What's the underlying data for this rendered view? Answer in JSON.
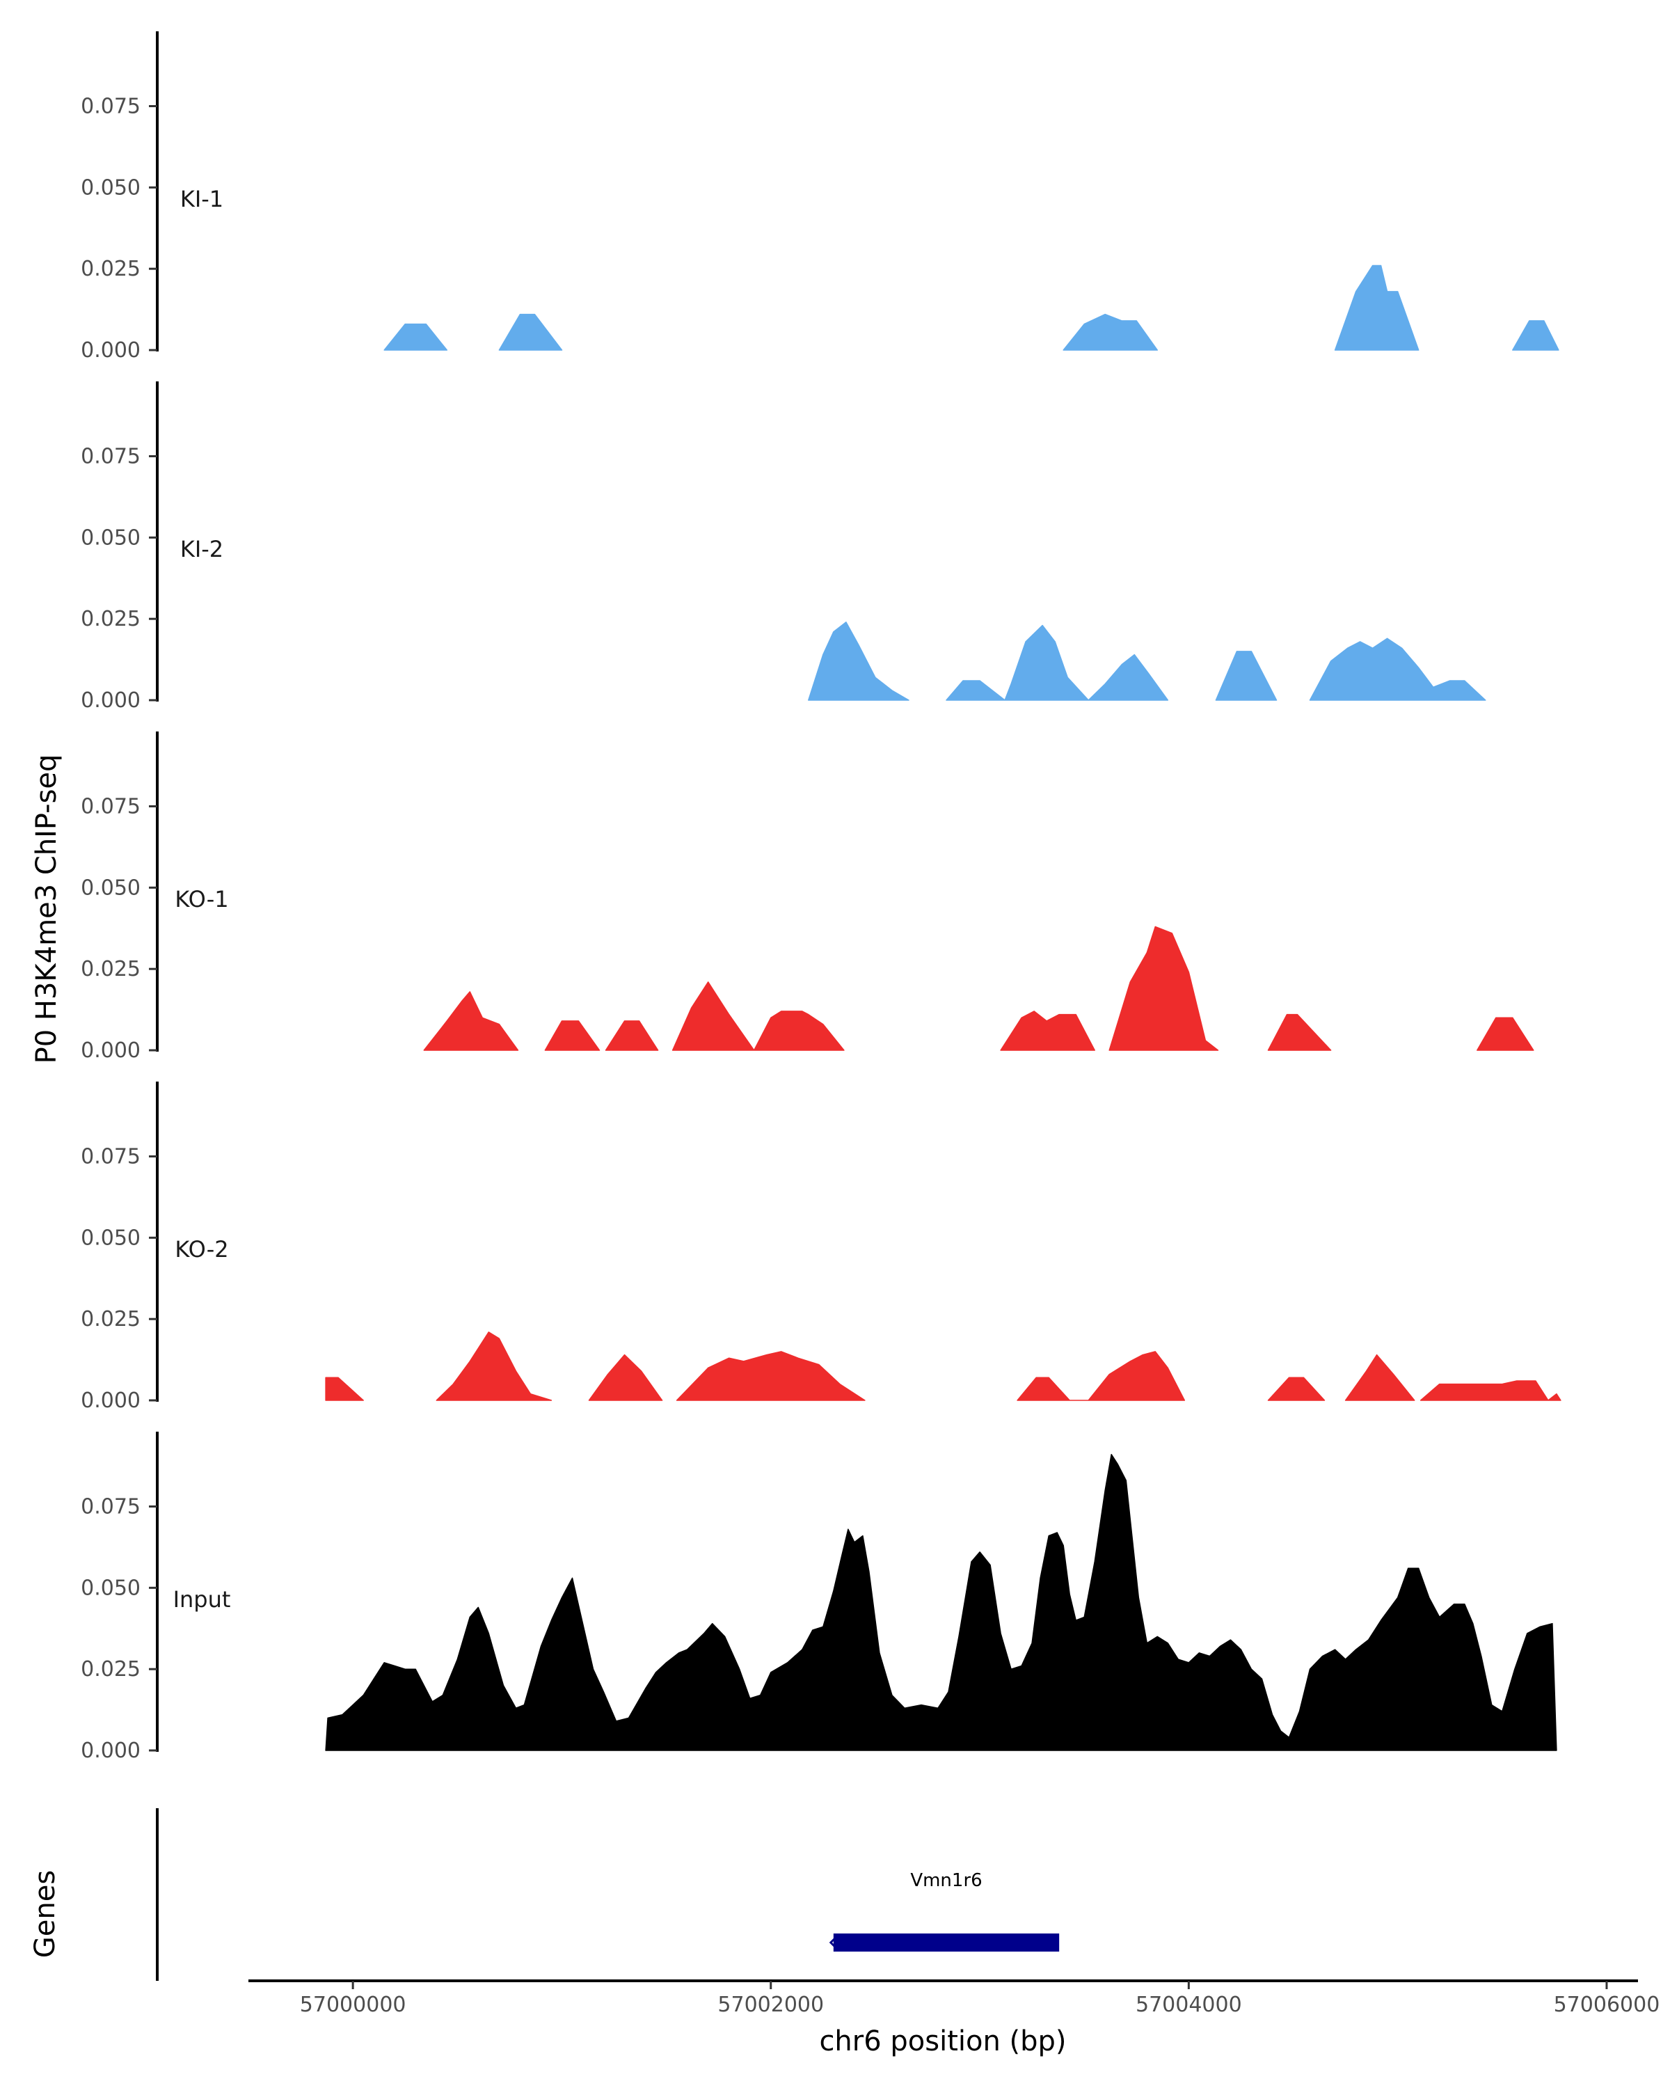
{
  "chart_data": {
    "type": "area",
    "x_axis": {
      "label": "chr6 position (bp)",
      "range": [
        56999500,
        57006150
      ],
      "ticks": [
        57000000,
        57002000,
        57004000,
        57006000
      ],
      "tick_labels": [
        "57000000",
        "57002000",
        "57004000",
        "57006000"
      ]
    },
    "y_axis": {
      "label": "P0 H3K4me3 ChIP-seq",
      "range": [
        0,
        0.098
      ],
      "ticks": [
        0,
        0.025,
        0.05,
        0.075
      ],
      "tick_labels": [
        "0.000",
        "0.025",
        "0.050",
        "0.075"
      ]
    },
    "grid": false,
    "tracks": [
      {
        "name": "KI-1",
        "color": "#62acec",
        "points": [
          [
            57000150,
            0
          ],
          [
            57000250,
            0.008
          ],
          [
            57000350,
            0.008
          ],
          [
            57000450,
            0
          ],
          null,
          [
            57000700,
            0
          ],
          [
            57000800,
            0.011
          ],
          [
            57000870,
            0.011
          ],
          [
            57001000,
            0
          ],
          null,
          [
            57003400,
            0
          ],
          [
            57003500,
            0.008
          ],
          [
            57003600,
            0.011
          ],
          [
            57003680,
            0.009
          ],
          [
            57003750,
            0.009
          ],
          [
            57003850,
            0
          ],
          null,
          [
            57004700,
            0
          ],
          [
            57004800,
            0.018
          ],
          [
            57004880,
            0.026
          ],
          [
            57004920,
            0.026
          ],
          [
            57004950,
            0.018
          ],
          [
            57005000,
            0.018
          ],
          [
            57005100,
            0
          ],
          null,
          [
            57005550,
            0
          ],
          [
            57005630,
            0.009
          ],
          [
            57005700,
            0.009
          ],
          [
            57005770,
            0
          ]
        ]
      },
      {
        "name": "KI-2",
        "color": "#62acec",
        "points": [
          [
            57002180,
            0
          ],
          [
            57002250,
            0.014
          ],
          [
            57002300,
            0.021
          ],
          [
            57002360,
            0.024
          ],
          [
            57002420,
            0.017
          ],
          [
            57002500,
            0.007
          ],
          [
            57002580,
            0.003
          ],
          [
            57002660,
            0
          ],
          null,
          [
            57002840,
            0
          ],
          [
            57002920,
            0.006
          ],
          [
            57003000,
            0.006
          ],
          [
            57003120,
            0
          ],
          [
            57003150,
            0.005
          ],
          [
            57003220,
            0.018
          ],
          [
            57003300,
            0.023
          ],
          [
            57003360,
            0.018
          ],
          [
            57003420,
            0.007
          ],
          [
            57003520,
            0
          ],
          [
            57003600,
            0.005
          ],
          [
            57003680,
            0.011
          ],
          [
            57003740,
            0.014
          ],
          [
            57003810,
            0.008
          ],
          [
            57003900,
            0
          ],
          null,
          [
            57004130,
            0
          ],
          [
            57004230,
            0.015
          ],
          [
            57004300,
            0.015
          ],
          [
            57004420,
            0
          ],
          null,
          [
            57004580,
            0
          ],
          [
            57004680,
            0.012
          ],
          [
            57004760,
            0.016
          ],
          [
            57004820,
            0.018
          ],
          [
            57004880,
            0.016
          ],
          [
            57004950,
            0.019
          ],
          [
            57005020,
            0.016
          ],
          [
            57005100,
            0.01
          ],
          [
            57005170,
            0.004
          ],
          [
            57005250,
            0.006
          ],
          [
            57005320,
            0.006
          ],
          [
            57005420,
            0
          ]
        ]
      },
      {
        "name": "KO-1",
        "color": "#ee2c2c",
        "points": [
          [
            57000340,
            0
          ],
          [
            57000450,
            0.009
          ],
          [
            57000520,
            0.015
          ],
          [
            57000560,
            0.018
          ],
          [
            57000620,
            0.01
          ],
          [
            57000700,
            0.008
          ],
          [
            57000790,
            0
          ],
          null,
          [
            57000920,
            0
          ],
          [
            57001000,
            0.009
          ],
          [
            57001080,
            0.009
          ],
          [
            57001180,
            0
          ],
          null,
          [
            57001210,
            0
          ],
          [
            57001300,
            0.009
          ],
          [
            57001370,
            0.009
          ],
          [
            57001460,
            0
          ],
          null,
          [
            57001530,
            0
          ],
          [
            57001620,
            0.013
          ],
          [
            57001700,
            0.021
          ],
          [
            57001800,
            0.011
          ],
          [
            57001920,
            0
          ],
          [
            57002000,
            0.01
          ],
          [
            57002050,
            0.012
          ],
          [
            57002150,
            0.012
          ],
          [
            57002180,
            0.011
          ],
          [
            57002250,
            0.008
          ],
          [
            57002350,
            0
          ],
          null,
          [
            57003100,
            0
          ],
          [
            57003200,
            0.01
          ],
          [
            57003260,
            0.012
          ],
          [
            57003320,
            0.009
          ],
          [
            57003380,
            0.011
          ],
          [
            57003460,
            0.011
          ],
          [
            57003550,
            0
          ],
          null,
          [
            57003620,
            0
          ],
          [
            57003720,
            0.021
          ],
          [
            57003800,
            0.03
          ],
          [
            57003840,
            0.038
          ],
          [
            57003920,
            0.036
          ],
          [
            57004000,
            0.024
          ],
          [
            57004080,
            0.003
          ],
          [
            57004140,
            0
          ],
          null,
          [
            57004380,
            0
          ],
          [
            57004470,
            0.011
          ],
          [
            57004520,
            0.011
          ],
          [
            57004680,
            0
          ],
          null,
          [
            57005380,
            0
          ],
          [
            57005470,
            0.01
          ],
          [
            57005550,
            0.01
          ],
          [
            57005650,
            0
          ]
        ]
      },
      {
        "name": "KO-2",
        "color": "#ee2c2c",
        "points": [
          [
            56999870,
            0
          ],
          [
            56999870,
            0.007
          ],
          [
            56999930,
            0.007
          ],
          [
            57000050,
            0
          ],
          null,
          [
            57000400,
            0
          ],
          [
            57000480,
            0.005
          ],
          [
            57000560,
            0.012
          ],
          [
            57000650,
            0.021
          ],
          [
            57000700,
            0.019
          ],
          [
            57000780,
            0.009
          ],
          [
            57000850,
            0.002
          ],
          [
            57000950,
            0
          ],
          null,
          [
            57001130,
            0
          ],
          [
            57001220,
            0.008
          ],
          [
            57001300,
            0.014
          ],
          [
            57001380,
            0.009
          ],
          [
            57001480,
            0
          ],
          null,
          [
            57001550,
            0
          ],
          [
            57001700,
            0.01
          ],
          [
            57001800,
            0.013
          ],
          [
            57001870,
            0.012
          ],
          [
            57001980,
            0.014
          ],
          [
            57002050,
            0.015
          ],
          [
            57002130,
            0.013
          ],
          [
            57002230,
            0.011
          ],
          [
            57002330,
            0.005
          ],
          [
            57002450,
            0
          ],
          null,
          [
            57003180,
            0
          ],
          [
            57003270,
            0.007
          ],
          [
            57003330,
            0.007
          ],
          [
            57003430,
            0
          ],
          [
            57003520,
            0
          ],
          [
            57003620,
            0.008
          ],
          [
            57003720,
            0.012
          ],
          [
            57003780,
            0.014
          ],
          [
            57003840,
            0.015
          ],
          [
            57003900,
            0.01
          ],
          [
            57003980,
            0
          ],
          null,
          [
            57004380,
            0
          ],
          [
            57004480,
            0.007
          ],
          [
            57004550,
            0.007
          ],
          [
            57004650,
            0
          ],
          null,
          [
            57004750,
            0
          ],
          [
            57004850,
            0.009
          ],
          [
            57004900,
            0.014
          ],
          [
            57004980,
            0.008
          ],
          [
            57005080,
            0
          ],
          null,
          [
            57005110,
            0
          ],
          [
            57005200,
            0.005
          ],
          [
            57005300,
            0.005
          ],
          [
            57005500,
            0.005
          ],
          [
            57005570,
            0.006
          ],
          [
            57005660,
            0.006
          ],
          [
            57005720,
            0
          ],
          [
            57005760,
            0.002
          ],
          [
            57005780,
            0
          ]
        ]
      },
      {
        "name": "Input",
        "color": "#000000",
        "points": [
          [
            56999870,
            0
          ],
          [
            56999880,
            0.01
          ],
          [
            56999950,
            0.011
          ],
          [
            57000050,
            0.017
          ],
          [
            57000100,
            0.022
          ],
          [
            57000150,
            0.027
          ],
          [
            57000200,
            0.026
          ],
          [
            57000250,
            0.025
          ],
          [
            57000300,
            0.025
          ],
          [
            57000380,
            0.015
          ],
          [
            57000430,
            0.017
          ],
          [
            57000500,
            0.028
          ],
          [
            57000560,
            0.041
          ],
          [
            57000600,
            0.044
          ],
          [
            57000650,
            0.036
          ],
          [
            57000720,
            0.02
          ],
          [
            57000780,
            0.013
          ],
          [
            57000820,
            0.014
          ],
          [
            57000900,
            0.032
          ],
          [
            57000950,
            0.04
          ],
          [
            57001000,
            0.047
          ],
          [
            57001050,
            0.053
          ],
          [
            57001100,
            0.039
          ],
          [
            57001150,
            0.025
          ],
          [
            57001200,
            0.018
          ],
          [
            57001260,
            0.009
          ],
          [
            57001320,
            0.01
          ],
          [
            57001400,
            0.019
          ],
          [
            57001450,
            0.024
          ],
          [
            57001500,
            0.027
          ],
          [
            57001560,
            0.03
          ],
          [
            57001600,
            0.031
          ],
          [
            57001680,
            0.036
          ],
          [
            57001720,
            0.039
          ],
          [
            57001780,
            0.035
          ],
          [
            57001850,
            0.025
          ],
          [
            57001900,
            0.016
          ],
          [
            57001950,
            0.017
          ],
          [
            57002000,
            0.024
          ],
          [
            57002080,
            0.027
          ],
          [
            57002150,
            0.031
          ],
          [
            57002200,
            0.037
          ],
          [
            57002250,
            0.038
          ],
          [
            57002300,
            0.049
          ],
          [
            57002340,
            0.06
          ],
          [
            57002370,
            0.068
          ],
          [
            57002400,
            0.064
          ],
          [
            57002440,
            0.066
          ],
          [
            57002470,
            0.055
          ],
          [
            57002520,
            0.03
          ],
          [
            57002580,
            0.017
          ],
          [
            57002640,
            0.013
          ],
          [
            57002720,
            0.014
          ],
          [
            57002800,
            0.013
          ],
          [
            57002850,
            0.018
          ],
          [
            57002900,
            0.035
          ],
          [
            57002960,
            0.058
          ],
          [
            57003000,
            0.061
          ],
          [
            57003050,
            0.057
          ],
          [
            57003100,
            0.036
          ],
          [
            57003150,
            0.025
          ],
          [
            57003200,
            0.026
          ],
          [
            57003250,
            0.033
          ],
          [
            57003290,
            0.053
          ],
          [
            57003330,
            0.066
          ],
          [
            57003370,
            0.067
          ],
          [
            57003400,
            0.063
          ],
          [
            57003430,
            0.048
          ],
          [
            57003460,
            0.04
          ],
          [
            57003500,
            0.041
          ],
          [
            57003550,
            0.058
          ],
          [
            57003600,
            0.08
          ],
          [
            57003630,
            0.091
          ],
          [
            57003660,
            0.088
          ],
          [
            57003700,
            0.083
          ],
          [
            57003760,
            0.047
          ],
          [
            57003800,
            0.033
          ],
          [
            57003850,
            0.035
          ],
          [
            57003900,
            0.033
          ],
          [
            57003950,
            0.028
          ],
          [
            57004000,
            0.027
          ],
          [
            57004050,
            0.03
          ],
          [
            57004100,
            0.029
          ],
          [
            57004150,
            0.032
          ],
          [
            57004200,
            0.034
          ],
          [
            57004250,
            0.031
          ],
          [
            57004300,
            0.025
          ],
          [
            57004350,
            0.022
          ],
          [
            57004400,
            0.011
          ],
          [
            57004440,
            0.006
          ],
          [
            57004480,
            0.004
          ],
          [
            57004530,
            0.012
          ],
          [
            57004580,
            0.025
          ],
          [
            57004640,
            0.029
          ],
          [
            57004700,
            0.031
          ],
          [
            57004750,
            0.028
          ],
          [
            57004800,
            0.031
          ],
          [
            57004860,
            0.034
          ],
          [
            57004920,
            0.04
          ],
          [
            57005000,
            0.047
          ],
          [
            57005050,
            0.056
          ],
          [
            57005100,
            0.056
          ],
          [
            57005150,
            0.047
          ],
          [
            57005200,
            0.041
          ],
          [
            57005270,
            0.045
          ],
          [
            57005320,
            0.045
          ],
          [
            57005360,
            0.039
          ],
          [
            57005400,
            0.029
          ],
          [
            57005450,
            0.014
          ],
          [
            57005500,
            0.012
          ],
          [
            57005560,
            0.025
          ],
          [
            57005620,
            0.036
          ],
          [
            57005680,
            0.038
          ],
          [
            57005740,
            0.039
          ],
          [
            57005760,
            0
          ]
        ]
      }
    ],
    "genes": [
      {
        "name": "Vmn1r6",
        "start": 57002300,
        "end": 57003380,
        "strand": "-",
        "color": "#00008b"
      }
    ],
    "genes_track_label": "Genes"
  }
}
